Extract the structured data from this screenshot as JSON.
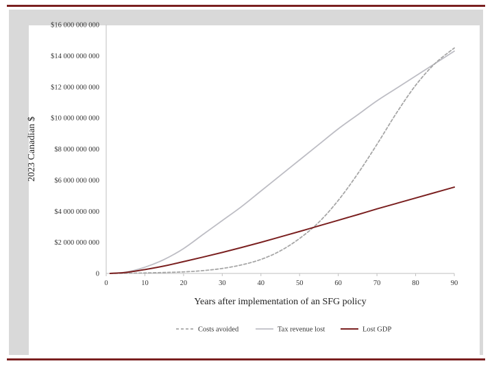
{
  "chart_data": {
    "type": "line",
    "title": "",
    "xlabel": "Years after implementation of an SFG policy",
    "ylabel": "2023 Canadian $",
    "xlim": [
      0,
      90
    ],
    "ylim": [
      0,
      16000000000
    ],
    "x_ticks": [
      0,
      10,
      20,
      30,
      40,
      50,
      60,
      70,
      80,
      90
    ],
    "y_ticks": [
      {
        "value": 0,
        "label": "0"
      },
      {
        "value": 2000000000,
        "label": "$2 000 000 000"
      },
      {
        "value": 4000000000,
        "label": "$4 000 000 000"
      },
      {
        "value": 6000000000,
        "label": "$6 000 000 000"
      },
      {
        "value": 8000000000,
        "label": "$8 000 000 000"
      },
      {
        "value": 10000000000,
        "label": "$10 000 000 000"
      },
      {
        "value": 12000000000,
        "label": "$12 000 000 000"
      },
      {
        "value": 14000000000,
        "label": "$14 000 000 000"
      },
      {
        "value": 16000000000,
        "label": "$16 000 000 000"
      }
    ],
    "legend_position": "bottom",
    "series": [
      {
        "name": "Costs avoided",
        "color": "#a6a6a6",
        "style": "dashed",
        "x": [
          1,
          5,
          10,
          15,
          20,
          25,
          30,
          35,
          40,
          45,
          50,
          55,
          60,
          65,
          70,
          75,
          80,
          85,
          90
        ],
        "values": [
          0,
          10000000,
          30000000,
          60000000,
          100000000,
          180000000,
          320000000,
          550000000,
          900000000,
          1450000000,
          2250000000,
          3300000000,
          4700000000,
          6400000000,
          8300000000,
          10300000000,
          12100000000,
          13500000000,
          14500000000
        ]
      },
      {
        "name": "Tax revenue lost",
        "color": "#bdbdc4",
        "style": "solid",
        "x": [
          1,
          5,
          10,
          15,
          20,
          25,
          30,
          35,
          40,
          45,
          50,
          55,
          60,
          65,
          70,
          75,
          80,
          85,
          90
        ],
        "values": [
          0,
          80000000,
          400000000,
          900000000,
          1600000000,
          2500000000,
          3400000000,
          4300000000,
          5300000000,
          6300000000,
          7300000000,
          8300000000,
          9300000000,
          10200000000,
          11100000000,
          11900000000,
          12700000000,
          13500000000,
          14300000000
        ]
      },
      {
        "name": "Lost GDP",
        "color": "#7a1f1f",
        "style": "solid",
        "x": [
          1,
          5,
          10,
          15,
          20,
          25,
          30,
          35,
          40,
          45,
          50,
          55,
          60,
          65,
          70,
          75,
          80,
          85,
          90
        ],
        "values": [
          0,
          60000000,
          250000000,
          480000000,
          760000000,
          1050000000,
          1350000000,
          1670000000,
          2000000000,
          2350000000,
          2700000000,
          3060000000,
          3420000000,
          3780000000,
          4150000000,
          4500000000,
          4850000000,
          5200000000,
          5550000000
        ]
      }
    ]
  }
}
